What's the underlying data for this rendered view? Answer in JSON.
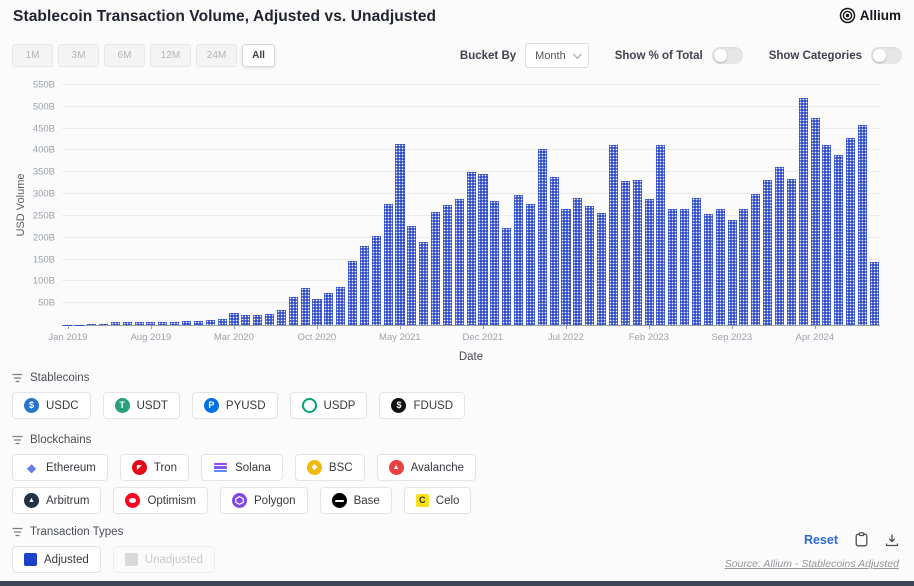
{
  "header": {
    "title": "Stablecoin Transaction Volume, Adjusted vs. Unadjusted",
    "brand": "Allium"
  },
  "toolbar": {
    "time_ranges": [
      "1M",
      "3M",
      "6M",
      "12M",
      "24M",
      "All"
    ],
    "selected_range": "All",
    "bucket_by_label": "Bucket By",
    "bucket_value": "Month",
    "show_pct_label": "Show % of Total",
    "show_pct_on": false,
    "show_categories_label": "Show Categories",
    "show_categories_on": false
  },
  "chart_data": {
    "type": "bar",
    "title": "Stablecoin Transaction Volume, Adjusted vs. Unadjusted",
    "xlabel": "Date",
    "ylabel": "USD Volume",
    "y_unit": "billions USD",
    "ylim": [
      0,
      550
    ],
    "grid": true,
    "legend": "none",
    "bar_color": "#2946c8",
    "bar_pattern": "white-dots",
    "y_ticks": [
      {
        "value": 50,
        "label": "50B"
      },
      {
        "value": 100,
        "label": "100B"
      },
      {
        "value": 150,
        "label": "150B"
      },
      {
        "value": 200,
        "label": "200B"
      },
      {
        "value": 250,
        "label": "250B"
      },
      {
        "value": 300,
        "label": "300B"
      },
      {
        "value": 350,
        "label": "350B"
      },
      {
        "value": 400,
        "label": "400B"
      },
      {
        "value": 450,
        "label": "450B"
      },
      {
        "value": 500,
        "label": "500B"
      },
      {
        "value": 550,
        "label": "550B"
      }
    ],
    "x_ticks": [
      {
        "index": 0,
        "label": "Jan 2019"
      },
      {
        "index": 7,
        "label": "Aug 2019"
      },
      {
        "index": 14,
        "label": "Mar 2020"
      },
      {
        "index": 21,
        "label": "Oct 2020"
      },
      {
        "index": 28,
        "label": "May 2021"
      },
      {
        "index": 35,
        "label": "Dec 2021"
      },
      {
        "index": 42,
        "label": "Jul 2022"
      },
      {
        "index": 49,
        "label": "Feb 2023"
      },
      {
        "index": 56,
        "label": "Sep 2023"
      },
      {
        "index": 63,
        "label": "Apr 2024"
      }
    ],
    "categories": [
      "Jan 2019",
      "Feb 2019",
      "Mar 2019",
      "Apr 2019",
      "May 2019",
      "Jun 2019",
      "Jul 2019",
      "Aug 2019",
      "Sep 2019",
      "Oct 2019",
      "Nov 2019",
      "Dec 2019",
      "Jan 2020",
      "Feb 2020",
      "Mar 2020",
      "Apr 2020",
      "May 2020",
      "Jun 2020",
      "Jul 2020",
      "Aug 2020",
      "Sep 2020",
      "Oct 2020",
      "Nov 2020",
      "Dec 2020",
      "Jan 2021",
      "Feb 2021",
      "Mar 2021",
      "Apr 2021",
      "May 2021",
      "Jun 2021",
      "Jul 2021",
      "Aug 2021",
      "Sep 2021",
      "Oct 2021",
      "Nov 2021",
      "Dec 2021",
      "Jan 2022",
      "Feb 2022",
      "Mar 2022",
      "Apr 2022",
      "May 2022",
      "Jun 2022",
      "Jul 2022",
      "Aug 2022",
      "Sep 2022",
      "Oct 2022",
      "Nov 2022",
      "Dec 2022",
      "Jan 2023",
      "Feb 2023",
      "Mar 2023",
      "Apr 2023",
      "May 2023",
      "Jun 2023",
      "Jul 2023",
      "Aug 2023",
      "Sep 2023",
      "Oct 2023",
      "Nov 2023",
      "Dec 2023",
      "Jan 2024",
      "Feb 2024",
      "Mar 2024",
      "Apr 2024",
      "May 2024",
      "Jun 2024",
      "Jul 2024",
      "Aug 2024",
      "Sep 2024"
    ],
    "series": [
      {
        "name": "Adjusted",
        "color": "#2946c8",
        "values": [
          1,
          1,
          2,
          3,
          7,
          6,
          8,
          6,
          7,
          8,
          9,
          10,
          12,
          14,
          28,
          22,
          24,
          26,
          35,
          65,
          84,
          60,
          74,
          88,
          146,
          181,
          204,
          277,
          415,
          228,
          190,
          260,
          274,
          288,
          350,
          346,
          285,
          223,
          297,
          278,
          404,
          340,
          267,
          292,
          273,
          256,
          412,
          331,
          332,
          288,
          412,
          265,
          265,
          292,
          255,
          265,
          241,
          267,
          300,
          332,
          362,
          335,
          520,
          474,
          412,
          390,
          429,
          459,
          145
        ]
      }
    ]
  },
  "filters": {
    "stablecoins": {
      "label": "Stablecoins",
      "chips": [
        {
          "name": "usdc",
          "label": "USDC",
          "icon": {
            "type": "circle",
            "bg": "#2775CA",
            "glyph": "$",
            "gs": 9
          }
        },
        {
          "name": "usdt",
          "label": "USDT",
          "icon": {
            "type": "circle",
            "bg": "#26A17B",
            "glyph": "T",
            "gs": 9
          }
        },
        {
          "name": "pyusd",
          "label": "PYUSD",
          "icon": {
            "type": "circle",
            "bg": "#0070E0",
            "glyph": "P",
            "gs": 9
          }
        },
        {
          "name": "usdp",
          "label": "USDP",
          "icon": {
            "type": "ring",
            "bg": "#00A478"
          }
        },
        {
          "name": "fdusd",
          "label": "FDUSD",
          "icon": {
            "type": "circle",
            "bg": "#111111",
            "glyph": "$",
            "gs": 9
          }
        }
      ]
    },
    "blockchains": {
      "label": "Blockchains",
      "rows": [
        [
          {
            "name": "ethereum",
            "label": "Ethereum",
            "icon": {
              "type": "glyph",
              "glyph": "◆",
              "color": "#627EEA",
              "gs": 12
            }
          },
          {
            "name": "tron",
            "label": "Tron",
            "icon": {
              "type": "circle",
              "bg": "#E50915",
              "glyph": "◤",
              "gs": 6
            }
          },
          {
            "name": "solana",
            "label": "Solana",
            "icon": {
              "type": "solana",
              "colors": [
                "#9945FF",
                "#7F5AF0",
                "#5E8BF5"
              ]
            }
          },
          {
            "name": "bsc",
            "label": "BSC",
            "icon": {
              "type": "circle",
              "bg": "#F0B90B",
              "glyph": "◆",
              "gs": 7
            }
          },
          {
            "name": "avalanche",
            "label": "Avalanche",
            "icon": {
              "type": "circle",
              "bg": "#E84142",
              "glyph": "▲",
              "gs": 7
            }
          }
        ],
        [
          {
            "name": "arbitrum",
            "label": "Arbitrum",
            "icon": {
              "type": "circle",
              "bg": "#213147",
              "glyph": "▲",
              "gs": 7
            }
          },
          {
            "name": "optimism",
            "label": "Optimism",
            "icon": {
              "type": "ellipse",
              "bg": "#FF0420"
            }
          },
          {
            "name": "polygon",
            "label": "Polygon",
            "icon": {
              "type": "hex",
              "bg": "#8247E5"
            }
          },
          {
            "name": "base",
            "label": "Base",
            "icon": {
              "type": "base",
              "bg": "#000000"
            }
          },
          {
            "name": "celo",
            "label": "Celo",
            "icon": {
              "type": "celo",
              "bg": "#F7E017",
              "glyph": "C"
            }
          }
        ]
      ]
    },
    "transaction_types": {
      "label": "Transaction Types",
      "chips": [
        {
          "name": "adjusted",
          "label": "Adjusted",
          "swatch": "#1d40c9",
          "enabled": true
        },
        {
          "name": "unadjusted",
          "label": "Unadjusted",
          "swatch": "#d9d9d9",
          "enabled": false
        }
      ]
    }
  },
  "footer": {
    "reset_label": "Reset",
    "source": "Source: Allium - Stablecoins Adjusted"
  }
}
